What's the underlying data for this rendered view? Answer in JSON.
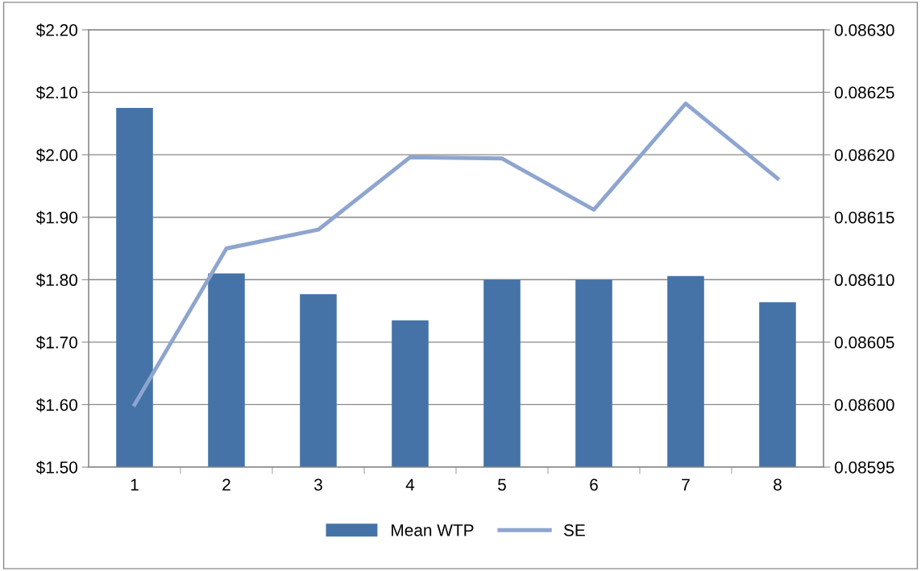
{
  "chart_data": {
    "type": "bar",
    "categories": [
      "1",
      "2",
      "3",
      "4",
      "5",
      "6",
      "7",
      "8"
    ],
    "series": [
      {
        "name": "Mean WTP",
        "color": "#4573a7",
        "values": [
          2.075,
          1.81,
          1.777,
          1.735,
          1.8,
          1.8,
          1.806,
          1.764
        ]
      },
      {
        "name": "SE",
        "type": "line",
        "axis": "y2",
        "color": "#8ea5cf",
        "values": [
          0.086,
          0.086125,
          0.08614,
          0.086198,
          0.086197,
          0.086156,
          0.086241,
          0.086181
        ]
      }
    ],
    "ylim": [
      1.5,
      2.2
    ],
    "yticks": [
      {
        "value": 1.5,
        "label": "$1.50"
      },
      {
        "value": 1.6,
        "label": "$1.60"
      },
      {
        "value": 1.7,
        "label": "$1.70"
      },
      {
        "value": 1.8,
        "label": "$1.80"
      },
      {
        "value": 1.9,
        "label": "$1.90"
      },
      {
        "value": 2.0,
        "label": "$2.00"
      },
      {
        "value": 2.1,
        "label": "$2.10"
      },
      {
        "value": 2.2,
        "label": "$2.20"
      }
    ],
    "y2lim": [
      0.08595,
      0.0863
    ],
    "y2ticks": [
      {
        "value": 0.08595,
        "label": "0.08595"
      },
      {
        "value": 0.086,
        "label": "0.08600"
      },
      {
        "value": 0.08605,
        "label": "0.08605"
      },
      {
        "value": 0.0861,
        "label": "0.08610"
      },
      {
        "value": 0.08615,
        "label": "0.08615"
      },
      {
        "value": 0.0862,
        "label": "0.08620"
      },
      {
        "value": 0.08625,
        "label": "0.08625"
      },
      {
        "value": 0.0863,
        "label": "0.08630"
      }
    ],
    "grid": "y",
    "legend": "bottom",
    "marker": "none",
    "line_style": "solid"
  }
}
